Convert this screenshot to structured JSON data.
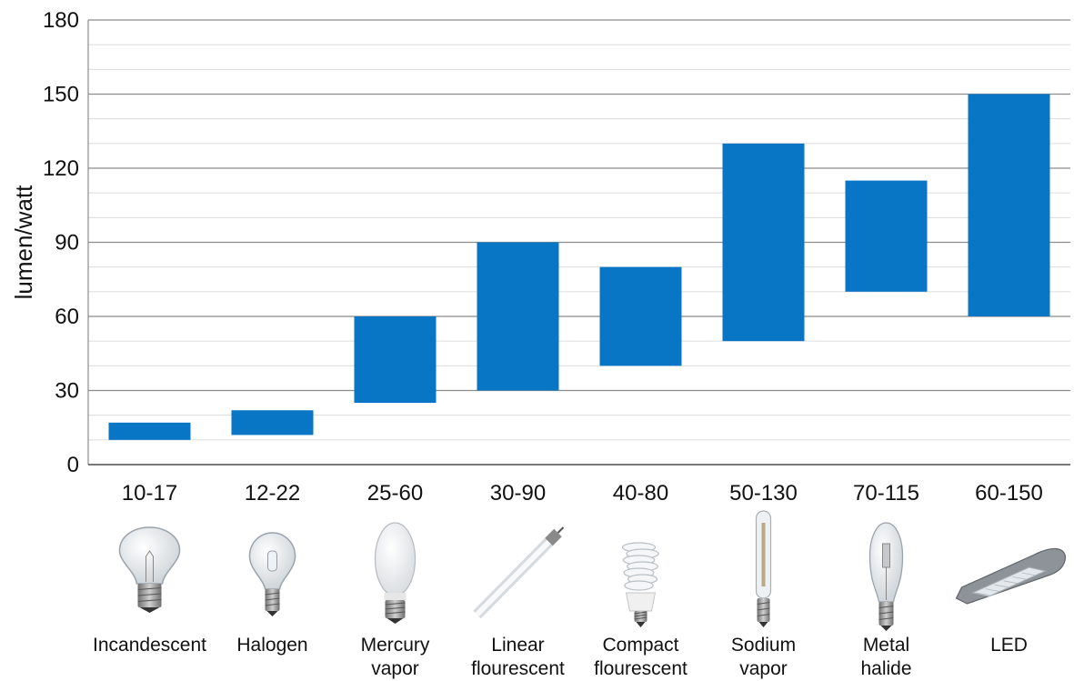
{
  "chart_data": {
    "type": "bar",
    "subtype": "floating-range",
    "ylabel": "lumen/watt",
    "xlabel": "",
    "ylim": [
      0,
      180
    ],
    "yticks": [
      0,
      30,
      60,
      90,
      120,
      150,
      180
    ],
    "minor_grid_step": 10,
    "grid": true,
    "bar_color": "#0876c4",
    "categories": [
      "10-17",
      "12-22",
      "25-60",
      "30-90",
      "40-80",
      "50-130",
      "70-115",
      "60-150"
    ],
    "lamp_types": [
      [
        "Incandescent"
      ],
      [
        "Halogen"
      ],
      [
        "Mercury",
        "vapor"
      ],
      [
        "Linear",
        "flourescent"
      ],
      [
        "Compact",
        "flourescent"
      ],
      [
        "Sodium",
        "vapor"
      ],
      [
        "Metal",
        "halide"
      ],
      [
        "LED"
      ]
    ],
    "icons": [
      "incandescent-bulb-icon",
      "halogen-bulb-icon",
      "mercury-vapor-bulb-icon",
      "linear-tube-icon",
      "compact-fluorescent-icon",
      "sodium-vapor-bulb-icon",
      "metal-halide-bulb-icon",
      "led-streetlight-icon"
    ],
    "ranges": [
      [
        10,
        17
      ],
      [
        12,
        22
      ],
      [
        25,
        60
      ],
      [
        30,
        90
      ],
      [
        40,
        80
      ],
      [
        50,
        130
      ],
      [
        70,
        115
      ],
      [
        60,
        150
      ]
    ]
  }
}
